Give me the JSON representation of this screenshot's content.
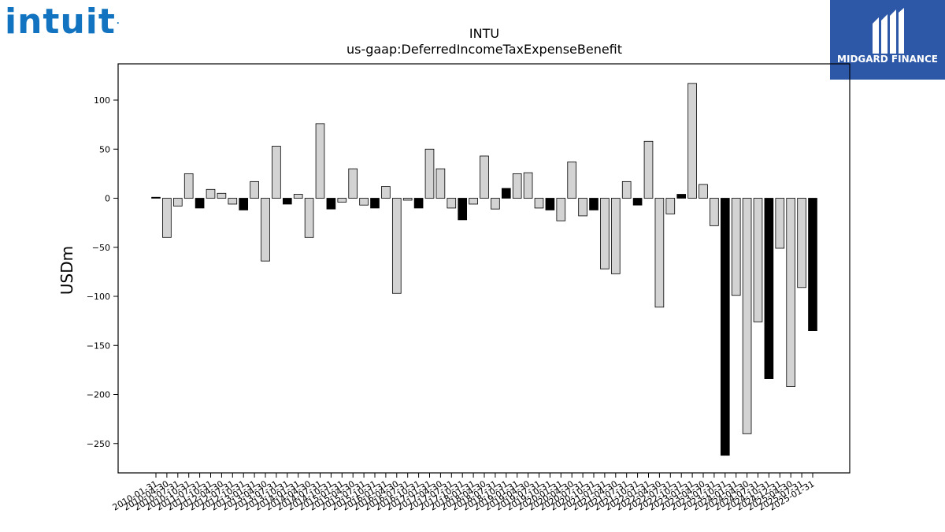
{
  "branding": {
    "left_logo": "intuit",
    "right_logo": "MIDGARD FINANCE",
    "left_logo_color": "#1274c0",
    "right_logo_bg": "#2d58a8"
  },
  "chart_data": {
    "type": "bar",
    "title": "INTU",
    "subtitle": "us-gaap:DeferredIncomeTaxExpenseBenefit",
    "ylabel": "USDm",
    "xlabel": "",
    "ylim": [
      -280,
      135
    ],
    "yticks": [
      100,
      50,
      0,
      -50,
      -100,
      -150,
      -200,
      -250
    ],
    "ytick_labels": [
      "100",
      "50",
      "0",
      "−50",
      "−100",
      "−150",
      "−200",
      "−250"
    ],
    "grid": false,
    "colors": {
      "annual": "#000000",
      "quarterly": "#d3d3d3",
      "edge": "#000000"
    },
    "bars": [
      {
        "label": "2010-01-31",
        "value": 1,
        "annual": true
      },
      {
        "label": "2010-04-30",
        "value": -40,
        "annual": false
      },
      {
        "label": "2010-07-31",
        "value": -8,
        "annual": false
      },
      {
        "label": "2010-10-31",
        "value": 25,
        "annual": false
      },
      {
        "label": "2011-07-31",
        "value": -10,
        "annual": true
      },
      {
        "label": "2011-10-31",
        "value": 9,
        "annual": false
      },
      {
        "label": "2012-04-30",
        "value": 5,
        "annual": false
      },
      {
        "label": "2012-07-31",
        "value": -6,
        "annual": false
      },
      {
        "label": "2012-10-31",
        "value": -12,
        "annual": true
      },
      {
        "label": "2013-01-31",
        "value": 17,
        "annual": false
      },
      {
        "label": "2013-04-30",
        "value": -64,
        "annual": false
      },
      {
        "label": "2013-07-31",
        "value": 53,
        "annual": false
      },
      {
        "label": "2013-10-31",
        "value": -6,
        "annual": true
      },
      {
        "label": "2014-01-31",
        "value": 4,
        "annual": false
      },
      {
        "label": "2014-04-30",
        "value": -40,
        "annual": false
      },
      {
        "label": "2014-07-31",
        "value": 76,
        "annual": false
      },
      {
        "label": "2014-10-31",
        "value": -11,
        "annual": true
      },
      {
        "label": "2015-01-31",
        "value": -4,
        "annual": false
      },
      {
        "label": "2015-04-30",
        "value": 30,
        "annual": false
      },
      {
        "label": "2015-07-31",
        "value": -7,
        "annual": false
      },
      {
        "label": "2015-10-31",
        "value": -10,
        "annual": true
      },
      {
        "label": "2016-01-31",
        "value": 12,
        "annual": false
      },
      {
        "label": "2016-04-30",
        "value": -97,
        "annual": false
      },
      {
        "label": "2016-07-31",
        "value": -2,
        "annual": false
      },
      {
        "label": "2016-10-31",
        "value": -10,
        "annual": true
      },
      {
        "label": "2017-01-31",
        "value": 50,
        "annual": false
      },
      {
        "label": "2017-04-30",
        "value": 30,
        "annual": false
      },
      {
        "label": "2017-07-31",
        "value": -10,
        "annual": false
      },
      {
        "label": "2017-10-31",
        "value": -22,
        "annual": true
      },
      {
        "label": "2018-01-31",
        "value": -6,
        "annual": false
      },
      {
        "label": "2018-04-30",
        "value": 43,
        "annual": false
      },
      {
        "label": "2018-07-31",
        "value": -11,
        "annual": false
      },
      {
        "label": "2018-10-31",
        "value": 10,
        "annual": true
      },
      {
        "label": "2019-01-31",
        "value": 25,
        "annual": false
      },
      {
        "label": "2019-04-30",
        "value": 26,
        "annual": false
      },
      {
        "label": "2019-07-31",
        "value": -10,
        "annual": false
      },
      {
        "label": "2019-10-31",
        "value": -12,
        "annual": true
      },
      {
        "label": "2020-01-31",
        "value": -23,
        "annual": false
      },
      {
        "label": "2020-04-30",
        "value": 37,
        "annual": false
      },
      {
        "label": "2020-07-31",
        "value": -18,
        "annual": false
      },
      {
        "label": "2020-10-31",
        "value": -12,
        "annual": true
      },
      {
        "label": "2021-01-31",
        "value": -72,
        "annual": false
      },
      {
        "label": "2021-04-30",
        "value": -77,
        "annual": false
      },
      {
        "label": "2021-07-31",
        "value": 17,
        "annual": false
      },
      {
        "label": "2021-10-31",
        "value": -7,
        "annual": true
      },
      {
        "label": "2022-01-31",
        "value": 58,
        "annual": false
      },
      {
        "label": "2022-04-30",
        "value": -111,
        "annual": false
      },
      {
        "label": "2022-07-31",
        "value": -16,
        "annual": false
      },
      {
        "label": "2022-10-31",
        "value": 4,
        "annual": true
      },
      {
        "label": "2023-01-31",
        "value": 117,
        "annual": false
      },
      {
        "label": "2023-04-30",
        "value": 14,
        "annual": false
      },
      {
        "label": "2023-07-31",
        "value": -28,
        "annual": false
      },
      {
        "label": "2023-10-31",
        "value": -262,
        "annual": true
      },
      {
        "label": "2024-01-31",
        "value": -99,
        "annual": false
      },
      {
        "label": "2024-04-30",
        "value": -240,
        "annual": false
      },
      {
        "label": "2024-07-31",
        "value": -126,
        "annual": false
      },
      {
        "label": "2024-10-31",
        "value": -184,
        "annual": true
      },
      {
        "label": "2024-12-31",
        "value": -51,
        "annual": false
      },
      {
        "label": "2025-04-30",
        "value": -192,
        "annual": false
      },
      {
        "label": "2025-07-31",
        "value": -91,
        "annual": false
      },
      {
        "label": "2025-01-31",
        "value": -135,
        "annual": true
      }
    ]
  }
}
